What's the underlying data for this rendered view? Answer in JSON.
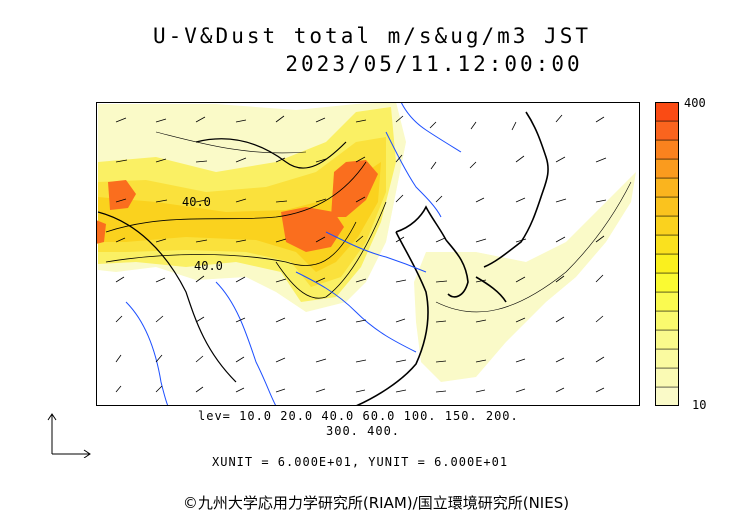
{
  "title_line1": "U-V&Dust total m/s&ug/m3 JST",
  "title_line2": "2023/05/11.12:00:00",
  "colorbar": {
    "max_label": "400",
    "min_label": "10",
    "colors": [
      "#fafac8",
      "#fafab4",
      "#fafaa0",
      "#fafa8c",
      "#fafa6e",
      "#fafa50",
      "#fafa32",
      "#faf01e",
      "#fae11e",
      "#fad21e",
      "#fac31e",
      "#fab41e",
      "#fa9b1e",
      "#fa821e",
      "#fa641e",
      "#fa4b14"
    ]
  },
  "contour_labels": [
    "40.0",
    "40.0"
  ],
  "lev_line1": "lev= 10.0 20.0 40.0 60.0 100. 150. 200.",
  "lev_line2": "300. 400.",
  "units_line": "XUNIT = 6.000E+01, YUNIT = 6.000E+01",
  "credit": "©九州大学応用力学研究所(RIAM)/国立環境研究所(NIES)",
  "palette": {
    "high": "#fa501e",
    "mid": "#fae13c",
    "low": "#fafac8",
    "water": "#1e50ff",
    "coast": "#000000"
  }
}
